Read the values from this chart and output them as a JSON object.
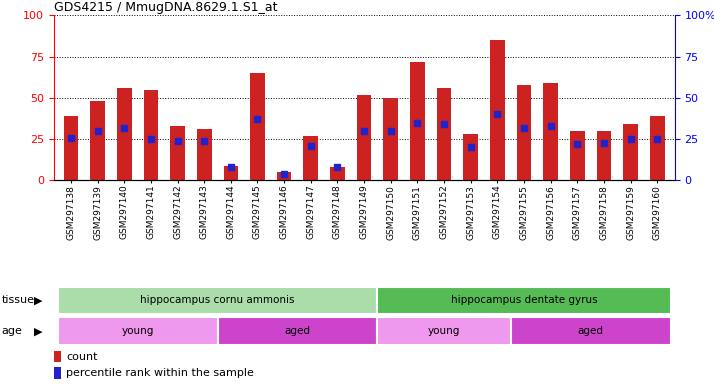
{
  "title": "GDS4215 / MmugDNA.8629.1.S1_at",
  "samples": [
    "GSM297138",
    "GSM297139",
    "GSM297140",
    "GSM297141",
    "GSM297142",
    "GSM297143",
    "GSM297144",
    "GSM297145",
    "GSM297146",
    "GSM297147",
    "GSM297148",
    "GSM297149",
    "GSM297150",
    "GSM297151",
    "GSM297152",
    "GSM297153",
    "GSM297154",
    "GSM297155",
    "GSM297156",
    "GSM297157",
    "GSM297158",
    "GSM297159",
    "GSM297160"
  ],
  "counts": [
    39,
    48,
    56,
    55,
    33,
    31,
    9,
    65,
    5,
    27,
    8,
    52,
    50,
    72,
    56,
    28,
    85,
    58,
    59,
    30,
    30,
    34,
    39
  ],
  "percentiles": [
    26,
    30,
    32,
    25,
    24,
    24,
    8,
    37,
    4,
    21,
    8,
    30,
    30,
    35,
    34,
    20,
    40,
    32,
    33,
    22,
    23,
    25,
    25
  ],
  "bar_color": "#cc2222",
  "dot_color": "#2222cc",
  "bg_color": "#ffffff",
  "tissue_groups": [
    {
      "label": "hippocampus cornu ammonis",
      "start": 0,
      "end": 12,
      "color": "#aaddaa"
    },
    {
      "label": "hippocampus dentate gyrus",
      "start": 12,
      "end": 23,
      "color": "#55bb55"
    }
  ],
  "age_groups": [
    {
      "label": "young",
      "start": 0,
      "end": 6,
      "color": "#ee99ee"
    },
    {
      "label": "aged",
      "start": 6,
      "end": 12,
      "color": "#cc44cc"
    },
    {
      "label": "young",
      "start": 12,
      "end": 17,
      "color": "#ee99ee"
    },
    {
      "label": "aged",
      "start": 17,
      "end": 23,
      "color": "#cc44cc"
    }
  ],
  "ylim": [
    0,
    100
  ],
  "yticks": [
    0,
    25,
    50,
    75,
    100
  ]
}
